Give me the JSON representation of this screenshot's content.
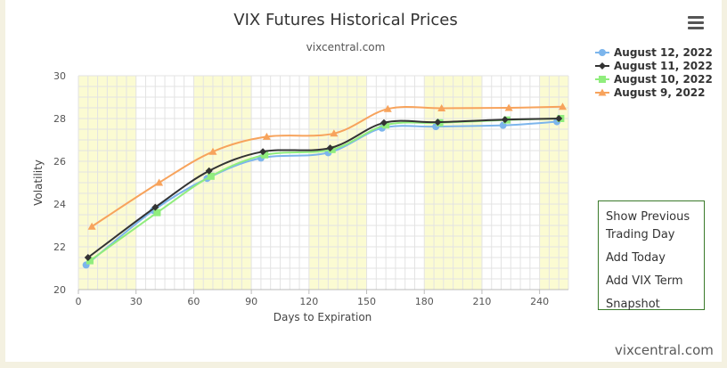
{
  "menu": {
    "items": [
      "Show Previous Trading Day",
      "Add Today",
      "Add VIX Term",
      "Snapshot"
    ]
  },
  "watermark": "vixcentral.com",
  "colors": {
    "band": "#fbfbd2",
    "grid": "#e3e3e3",
    "series": [
      "#7cb5ec",
      "#333333",
      "#90ed7d",
      "#f7a35c"
    ]
  },
  "icons": {
    "menu": "hamburger-menu-icon"
  },
  "chart_data": {
    "type": "line",
    "title": "VIX Futures Historical Prices",
    "subtitle": "vixcentral.com",
    "xlabel": "Days to Expiration",
    "ylabel": "Volatility",
    "xlim": [
      0,
      255
    ],
    "ylim": [
      20,
      30
    ],
    "xticks": [
      0,
      30,
      60,
      90,
      120,
      150,
      180,
      210,
      240
    ],
    "yticks": [
      20,
      22,
      24,
      26,
      28,
      30
    ],
    "grid": true,
    "legend_position": "top-right",
    "series": [
      {
        "name": "August 12, 2022",
        "marker": "circle",
        "x": [
          4,
          39,
          67,
          95,
          130,
          158,
          186,
          221,
          249
        ],
        "y": [
          21.15,
          23.7,
          25.2,
          26.15,
          26.4,
          27.55,
          27.62,
          27.68,
          27.85
        ]
      },
      {
        "name": "August 11, 2022",
        "marker": "diamond",
        "x": [
          5,
          40,
          68,
          96,
          131,
          159,
          187,
          222,
          250
        ],
        "y": [
          21.5,
          23.85,
          25.55,
          26.45,
          26.62,
          27.8,
          27.83,
          27.95,
          28.0
        ]
      },
      {
        "name": "August 10, 2022",
        "marker": "square",
        "x": [
          6,
          41,
          69,
          97,
          132,
          160,
          188,
          223,
          251
        ],
        "y": [
          21.35,
          23.6,
          25.3,
          26.3,
          26.55,
          27.7,
          27.8,
          27.93,
          28.0
        ]
      },
      {
        "name": "August 9, 2022",
        "marker": "triangle",
        "x": [
          7,
          42,
          70,
          98,
          133,
          161,
          189,
          224,
          252
        ],
        "y": [
          22.95,
          25.0,
          26.45,
          27.15,
          27.3,
          28.45,
          28.48,
          28.5,
          28.55
        ]
      }
    ]
  }
}
